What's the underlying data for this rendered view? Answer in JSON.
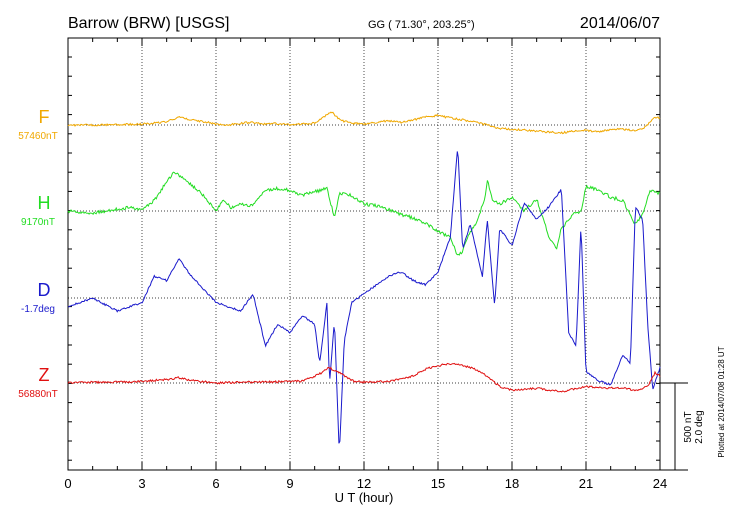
{
  "header": {
    "station": "Barrow (BRW)  [USGS]",
    "coords": "GG ( 71.30°, 203.25°)",
    "date": "2014/06/07"
  },
  "side_note": "Plotted at 2014/07/08 01:28 UT",
  "scale_bar": {
    "line1": "500 nT",
    "line2": "2.0 deg"
  },
  "chart_data": {
    "type": "line",
    "xlabel": "U T (hour)",
    "xlim": [
      0,
      24
    ],
    "x_ticks": [
      0,
      3,
      6,
      9,
      12,
      15,
      18,
      21,
      24
    ],
    "grid": true,
    "y_scale": {
      "nT_per_bar": 500,
      "deg_per_bar": 2.0
    },
    "series": [
      {
        "name": "F",
        "label": "57460nT",
        "color": "#f0a800",
        "x": [
          0,
          1,
          2,
          3,
          4,
          4.5,
          5,
          5.5,
          6,
          6.5,
          7,
          7.5,
          8,
          8.5,
          9,
          9.5,
          10,
          10.3,
          10.5,
          10.7,
          10.9,
          11.2,
          11.6,
          12,
          12.5,
          13,
          13.5,
          14,
          14.5,
          15,
          15.5,
          16,
          16.5,
          17,
          17.5,
          18,
          18.5,
          19,
          19.5,
          20,
          20.5,
          21,
          21.5,
          22,
          22.5,
          23,
          23.3,
          23.6,
          23.8,
          24
        ],
        "values": [
          0,
          0,
          2,
          5,
          20,
          45,
          30,
          20,
          5,
          0,
          10,
          15,
          5,
          8,
          0,
          5,
          10,
          40,
          60,
          75,
          45,
          20,
          10,
          5,
          15,
          25,
          15,
          30,
          45,
          55,
          40,
          30,
          15,
          0,
          -20,
          -25,
          -30,
          -35,
          -40,
          -45,
          -35,
          -30,
          -40,
          -25,
          -25,
          -30,
          -20,
          15,
          45,
          40
        ]
      },
      {
        "name": "H",
        "label": "9170nT",
        "color": "#22dd22",
        "x": [
          0,
          1,
          2,
          2.5,
          3,
          3.5,
          4,
          4.3,
          4.6,
          5,
          5.5,
          6,
          6.3,
          6.6,
          7,
          7.5,
          8,
          8.5,
          9,
          9.5,
          10,
          10.5,
          10.8,
          11,
          11.5,
          12,
          12.5,
          13,
          13.5,
          14,
          14.5,
          15,
          15.5,
          15.8,
          16,
          16.3,
          16.6,
          16.9,
          17,
          17.2,
          17.5,
          18,
          18.5,
          19,
          19.5,
          19.8,
          20,
          20.5,
          20.8,
          21,
          21.5,
          22,
          22.5,
          23,
          23.3,
          23.6,
          24
        ],
        "values": [
          0,
          -10,
          10,
          20,
          10,
          60,
          170,
          220,
          200,
          150,
          90,
          0,
          60,
          20,
          40,
          30,
          120,
          130,
          120,
          90,
          110,
          130,
          -40,
          100,
          90,
          40,
          30,
          10,
          -20,
          -40,
          -70,
          -120,
          -150,
          -260,
          -230,
          -120,
          -60,
          80,
          180,
          70,
          40,
          80,
          0,
          70,
          -150,
          -220,
          -100,
          -20,
          0,
          140,
          120,
          80,
          60,
          -80,
          -20,
          120,
          100
        ]
      },
      {
        "name": "D",
        "label": "-1.7deg",
        "color": "#1a1acc",
        "x": [
          0,
          1,
          2,
          3,
          3.5,
          4,
          4.5,
          5,
          5.5,
          6,
          6.5,
          7,
          7.5,
          8,
          8.5,
          9,
          9.5,
          10,
          10.2,
          10.5,
          10.6,
          10.8,
          11,
          11.2,
          11.5,
          12,
          12.5,
          13,
          13.5,
          14,
          14.5,
          15,
          15.5,
          15.8,
          16,
          16.3,
          16.8,
          17,
          17.3,
          17.5,
          18,
          18.5,
          19,
          19.5,
          20,
          20.3,
          20.6,
          20.8,
          21,
          21.5,
          22,
          22.5,
          22.8,
          23,
          23.3,
          23.5,
          23.7,
          24
        ],
        "values": [
          -0.2,
          0,
          -0.3,
          -0.1,
          0.5,
          0.4,
          0.9,
          0.5,
          0.2,
          -0.1,
          -0.2,
          -0.3,
          0.1,
          -1.1,
          -0.6,
          -0.8,
          -0.4,
          -0.6,
          -1.5,
          -0.1,
          -2.0,
          -0.5,
          -3.6,
          -1.0,
          -0.1,
          0.1,
          0.3,
          0.5,
          0.6,
          0.4,
          0.3,
          0.6,
          1.4,
          3.5,
          1.1,
          1.7,
          0.5,
          1.8,
          -0.2,
          1.6,
          1.2,
          2.2,
          1.8,
          2.1,
          2.5,
          -0.8,
          -1.1,
          1.7,
          -1.7,
          -1.9,
          -2.0,
          -1.3,
          -1.5,
          2.1,
          1.8,
          -0.6,
          -2.1,
          -1.6
        ]
      },
      {
        "name": "Z",
        "label": "56880nT",
        "color": "#e01010",
        "x": [
          0,
          1,
          2,
          3,
          4,
          4.5,
          5,
          6,
          7,
          8,
          9,
          9.5,
          10,
          10.3,
          10.6,
          10.8,
          11,
          11.3,
          11.6,
          12,
          13,
          14,
          14.5,
          15,
          15.5,
          16,
          16.5,
          17,
          17.5,
          18,
          19,
          20,
          21,
          22,
          22.5,
          23,
          23.5,
          23.8,
          24
        ],
        "values": [
          0,
          5,
          5,
          10,
          20,
          30,
          15,
          0,
          5,
          5,
          10,
          10,
          40,
          60,
          90,
          70,
          60,
          30,
          10,
          5,
          10,
          40,
          80,
          100,
          110,
          100,
          80,
          40,
          -20,
          -40,
          -30,
          -50,
          -20,
          -30,
          -25,
          -45,
          -20,
          60,
          40
        ]
      }
    ]
  }
}
